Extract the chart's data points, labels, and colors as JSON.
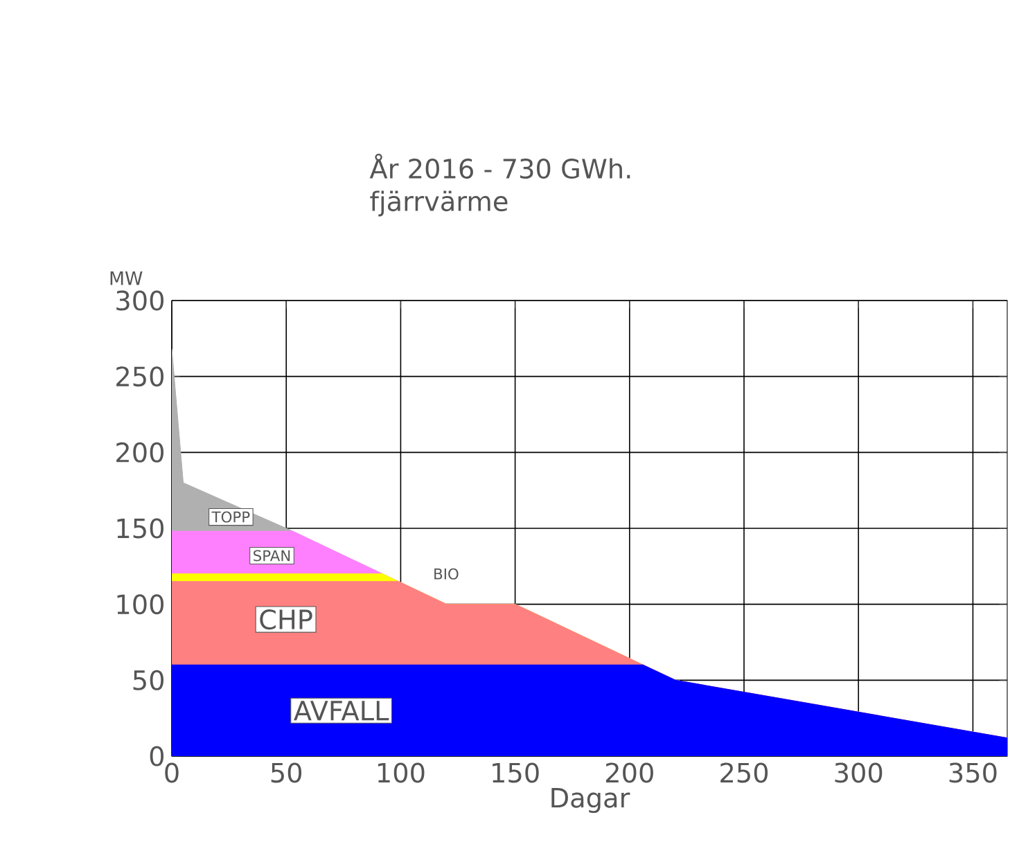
{
  "chart_data": {
    "type": "area",
    "title": "År 2016 - 730 GWh.",
    "subtitle": "fjärrvärme",
    "xlabel": "Dagar",
    "ylabel": "MW",
    "stacked": true,
    "x": [
      0,
      5,
      50,
      53,
      92,
      99,
      120,
      150,
      206,
      220,
      365
    ],
    "series": [
      {
        "name": "AVFALL",
        "color": "#0000ff",
        "values": [
          60,
          60,
          60,
          60,
          60,
          60,
          60,
          60,
          60,
          50,
          12
        ]
      },
      {
        "name": "CHP",
        "color": "#ff8080",
        "values": [
          55,
          55,
          55,
          55,
          55,
          55,
          40,
          40,
          0,
          0,
          0
        ]
      },
      {
        "name": "BIO",
        "color": "#ffff00",
        "values": [
          5,
          5,
          5,
          5,
          5,
          0,
          0,
          0,
          0,
          0,
          0
        ]
      },
      {
        "name": "SPAN",
        "color": "#ff80ff",
        "values": [
          28,
          28,
          28,
          28,
          0,
          0,
          0,
          0,
          0,
          0,
          0
        ]
      },
      {
        "name": "TOPP",
        "color": "#b0b0b0",
        "values": [
          120,
          32,
          2,
          0,
          0,
          0,
          0,
          0,
          0,
          0,
          0
        ]
      }
    ],
    "xlim": [
      0,
      365
    ],
    "ylim": [
      0,
      300
    ],
    "xticks": [
      0,
      50,
      100,
      150,
      200,
      250,
      300,
      350
    ],
    "yticks": [
      0,
      50,
      100,
      150,
      200,
      250,
      300
    ],
    "grid": true
  }
}
